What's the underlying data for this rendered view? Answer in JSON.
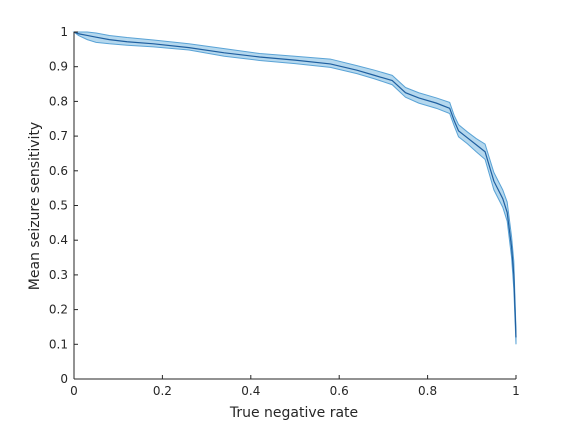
{
  "chart_data": {
    "type": "line",
    "xlabel": "True negative rate",
    "ylabel": "Mean seizure sensitivity",
    "xlim": [
      0,
      1
    ],
    "ylim": [
      0,
      1
    ],
    "xticks": [
      "0",
      "0.2",
      "0.4",
      "0.6",
      "0.8",
      "1"
    ],
    "yticks": [
      "0",
      "0.1",
      "0.2",
      "0.3",
      "0.4",
      "0.5",
      "0.6",
      "0.7",
      "0.8",
      "0.9",
      "1"
    ],
    "grid": false,
    "legend": "none",
    "colors": {
      "line": "#1f5fa0",
      "band": "#9ccbe8",
      "band_edge": "#5aa3d6",
      "axis": "#262626"
    },
    "series": [
      {
        "x": [
          0.0,
          0.01,
          0.03,
          0.05,
          0.08,
          0.12,
          0.18,
          0.26,
          0.34,
          0.42,
          0.5,
          0.58,
          0.64,
          0.68,
          0.72,
          0.75,
          0.78,
          0.82,
          0.85,
          0.86,
          0.87,
          0.89,
          0.91,
          0.93,
          0.95,
          0.97,
          0.98,
          0.99,
          0.995,
          1.0
        ],
        "y": [
          1.0,
          0.995,
          0.99,
          0.985,
          0.978,
          0.972,
          0.966,
          0.955,
          0.94,
          0.928,
          0.919,
          0.908,
          0.89,
          0.875,
          0.86,
          0.825,
          0.81,
          0.795,
          0.78,
          0.745,
          0.715,
          0.695,
          0.675,
          0.655,
          0.57,
          0.52,
          0.48,
          0.38,
          0.3,
          0.12
        ],
        "lower": [
          1.0,
          0.99,
          0.978,
          0.97,
          0.966,
          0.962,
          0.957,
          0.948,
          0.93,
          0.918,
          0.909,
          0.898,
          0.88,
          0.865,
          0.848,
          0.812,
          0.795,
          0.78,
          0.765,
          0.73,
          0.698,
          0.678,
          0.655,
          0.633,
          0.545,
          0.495,
          0.455,
          0.35,
          0.26,
          0.1
        ],
        "upper": [
          1.0,
          1.0,
          1.0,
          0.997,
          0.99,
          0.984,
          0.977,
          0.966,
          0.952,
          0.938,
          0.93,
          0.922,
          0.903,
          0.89,
          0.875,
          0.84,
          0.825,
          0.81,
          0.797,
          0.76,
          0.733,
          0.712,
          0.693,
          0.677,
          0.595,
          0.545,
          0.51,
          0.41,
          0.34,
          0.14
        ]
      }
    ]
  }
}
